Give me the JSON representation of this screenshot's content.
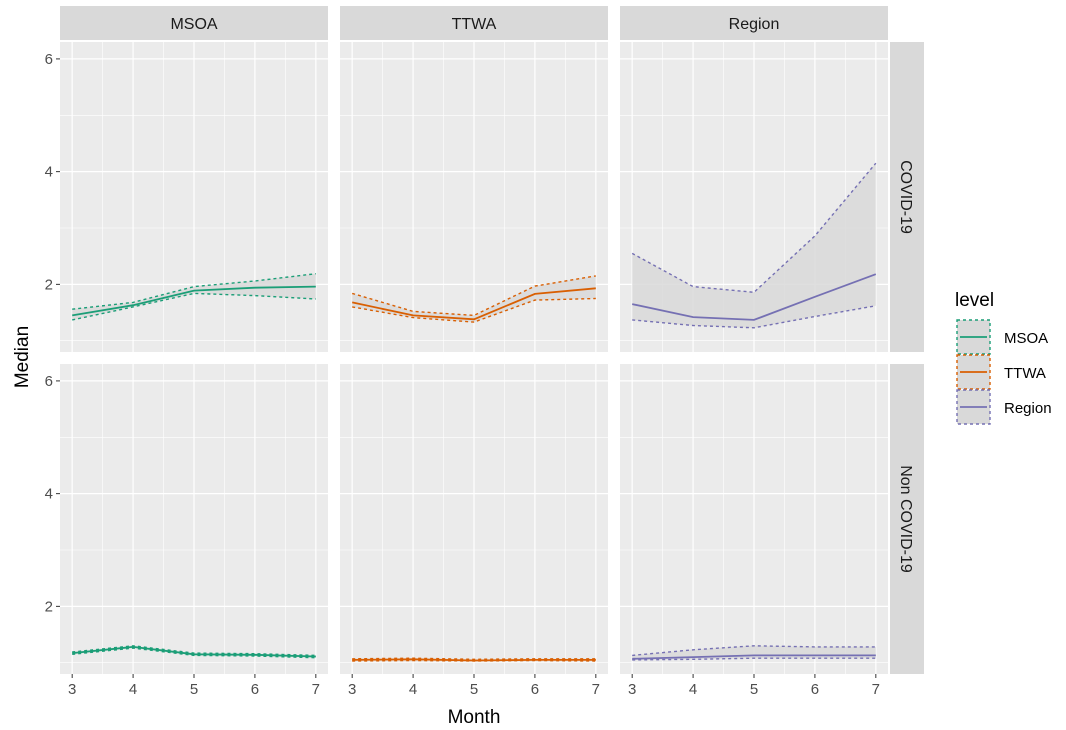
{
  "chart_data": {
    "type": "line",
    "xlabel": "Month",
    "ylabel": "Median",
    "x": [
      3,
      4,
      5,
      6,
      7
    ],
    "xlim": [
      2.8,
      7.2
    ],
    "ylim": [
      0.8,
      6.3
    ],
    "x_ticks": [
      3,
      4,
      5,
      6,
      7
    ],
    "y_ticks": [
      2,
      4,
      6
    ],
    "grid": true,
    "columns": [
      "MSOA",
      "TTWA",
      "Region"
    ],
    "rows": [
      "COVID-19",
      "Non COVID-19"
    ],
    "legend": {
      "title": "level",
      "placement": "right",
      "entries": [
        "MSOA",
        "TTWA",
        "Region"
      ]
    },
    "colors": {
      "MSOA": "#1b9e77",
      "TTWA": "#d95f02",
      "Region": "#7570b3",
      "ribbon": "#d9d9d9",
      "panel_bg": "#ebebeb",
      "strip_bg": "#d9d9d9",
      "grid": "#ffffff"
    },
    "panels": [
      {
        "row": "COVID-19",
        "col": "MSOA",
        "series": "MSOA",
        "median": [
          1.45,
          1.63,
          1.89,
          1.94,
          1.96
        ],
        "lower": [
          1.37,
          1.6,
          1.84,
          1.8,
          1.74
        ],
        "upper": [
          1.56,
          1.68,
          1.96,
          2.06,
          2.19
        ]
      },
      {
        "row": "COVID-19",
        "col": "TTWA",
        "series": "TTWA",
        "median": [
          1.68,
          1.45,
          1.38,
          1.83,
          1.93
        ],
        "lower": [
          1.6,
          1.41,
          1.33,
          1.72,
          1.75
        ],
        "upper": [
          1.84,
          1.52,
          1.45,
          1.97,
          2.15
        ]
      },
      {
        "row": "COVID-19",
        "col": "Region",
        "series": "Region",
        "median": [
          1.65,
          1.42,
          1.37,
          1.78,
          2.18
        ],
        "lower": [
          1.37,
          1.27,
          1.23,
          1.43,
          1.62
        ],
        "upper": [
          2.55,
          1.96,
          1.86,
          2.86,
          4.15
        ]
      },
      {
        "row": "Non COVID-19",
        "col": "MSOA",
        "series": "MSOA",
        "median": [
          1.17,
          1.28,
          1.15,
          1.14,
          1.11
        ],
        "lower": [
          1.15,
          1.26,
          1.13,
          1.12,
          1.09
        ],
        "upper": [
          1.19,
          1.3,
          1.17,
          1.16,
          1.13
        ]
      },
      {
        "row": "Non COVID-19",
        "col": "TTWA",
        "series": "TTWA",
        "median": [
          1.05,
          1.06,
          1.04,
          1.05,
          1.05
        ],
        "lower": [
          1.03,
          1.04,
          1.03,
          1.04,
          1.03
        ],
        "upper": [
          1.07,
          1.08,
          1.06,
          1.07,
          1.07
        ]
      },
      {
        "row": "Non COVID-19",
        "col": "Region",
        "series": "Region",
        "median": [
          1.07,
          1.1,
          1.13,
          1.13,
          1.13
        ],
        "lower": [
          1.05,
          1.06,
          1.08,
          1.08,
          1.08
        ],
        "upper": [
          1.13,
          1.23,
          1.3,
          1.28,
          1.28
        ]
      }
    ]
  }
}
